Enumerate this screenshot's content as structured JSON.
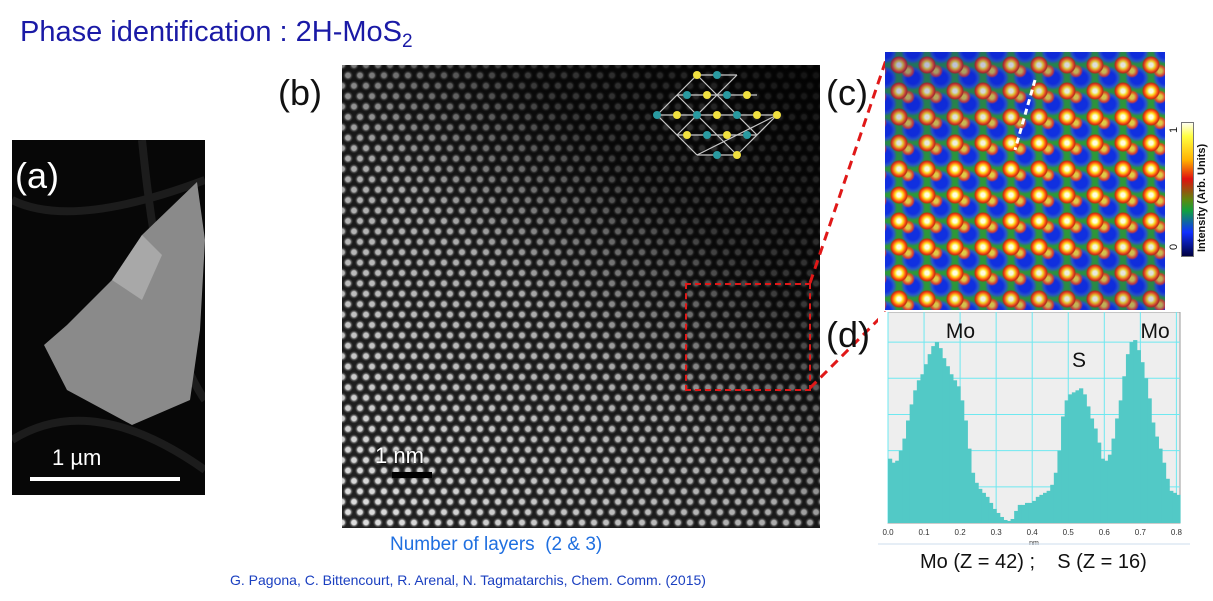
{
  "title": {
    "text": "Phase identification : 2H-MoS",
    "subscript": "2"
  },
  "panels": {
    "a": {
      "label": "(a)",
      "scale_text": "1 µm"
    },
    "b": {
      "label": "(b)",
      "scale_text": "1 nm",
      "caption": "Number of layers  (2 & 3)"
    },
    "c": {
      "label": "(c)",
      "colorbar": {
        "title": "Intensity (Arb. Units)",
        "max": "1",
        "min": "0"
      }
    },
    "d": {
      "label": "(d)",
      "peak_labels": [
        "Mo",
        "S",
        "Mo"
      ],
      "note": "Mo (Z = 42) ;    S (Z = 16)"
    }
  },
  "citation": "G. Pagona, C. Bittencourt, R. Arenal, N. Tagmatarchis, Chem. Comm. (2015)",
  "colors": {
    "title": "#1a1aa6",
    "highlight": "#e01818",
    "bars": "#52c9c6",
    "grid": "#6ee8f0"
  },
  "chart_data": {
    "type": "bar",
    "title": "",
    "xlabel": "nm",
    "ylabel": "",
    "xlim": [
      0,
      0.81
    ],
    "ylim": [
      0,
      1
    ],
    "xticks": [
      "0.0",
      "0.1",
      "0.2",
      "0.3",
      "0.4",
      "0.5",
      "0.6",
      "0.7",
      "0.8"
    ],
    "x_step": 0.01,
    "values": [
      0.32,
      0.3,
      0.31,
      0.36,
      0.42,
      0.51,
      0.59,
      0.66,
      0.71,
      0.74,
      0.79,
      0.84,
      0.88,
      0.9,
      0.87,
      0.82,
      0.78,
      0.74,
      0.71,
      0.68,
      0.61,
      0.51,
      0.37,
      0.25,
      0.2,
      0.17,
      0.15,
      0.13,
      0.1,
      0.07,
      0.05,
      0.03,
      0.015,
      0.01,
      0.02,
      0.06,
      0.09,
      0.09,
      0.1,
      0.1,
      0.11,
      0.13,
      0.14,
      0.15,
      0.16,
      0.19,
      0.25,
      0.36,
      0.53,
      0.61,
      0.64,
      0.65,
      0.66,
      0.67,
      0.64,
      0.58,
      0.52,
      0.47,
      0.4,
      0.32,
      0.31,
      0.34,
      0.42,
      0.52,
      0.61,
      0.73,
      0.84,
      0.9,
      0.91,
      0.86,
      0.8,
      0.72,
      0.62,
      0.5,
      0.43,
      0.37,
      0.3,
      0.22,
      0.16,
      0.15,
      0.14
    ],
    "annotations": [
      {
        "text": "Mo",
        "x": 0.14
      },
      {
        "text": "S",
        "x": 0.53
      },
      {
        "text": "Mo",
        "x": 0.68
      }
    ]
  }
}
